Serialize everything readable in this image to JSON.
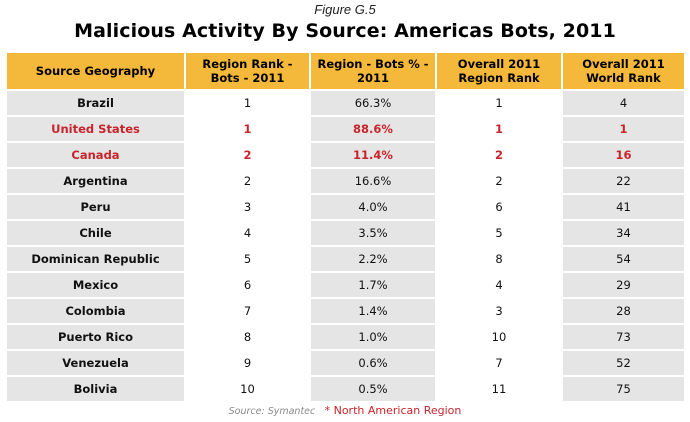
{
  "figure_label": "Figure G.5",
  "title": "Malicious Activity By Source: Americas Bots, 2011",
  "columns": [
    "Source Geography",
    "Region Rank - Bots - 2011",
    "Region - Bots % - 2011",
    "Overall 2011 Region Rank",
    "Overall 2011 World Rank"
  ],
  "rows": [
    {
      "geo": "Brazil",
      "region_rank": "1",
      "bots_pct": "66.3%",
      "overall_region_rank": "1",
      "world_rank": "4",
      "north_american": false
    },
    {
      "geo": "United States",
      "region_rank": "1",
      "bots_pct": "88.6%",
      "overall_region_rank": "1",
      "world_rank": "1",
      "north_american": true
    },
    {
      "geo": "Canada",
      "region_rank": "2",
      "bots_pct": "11.4%",
      "overall_region_rank": "2",
      "world_rank": "16",
      "north_american": true
    },
    {
      "geo": "Argentina",
      "region_rank": "2",
      "bots_pct": "16.6%",
      "overall_region_rank": "2",
      "world_rank": "22",
      "north_american": false
    },
    {
      "geo": "Peru",
      "region_rank": "3",
      "bots_pct": "4.0%",
      "overall_region_rank": "6",
      "world_rank": "41",
      "north_american": false
    },
    {
      "geo": "Chile",
      "region_rank": "4",
      "bots_pct": "3.5%",
      "overall_region_rank": "5",
      "world_rank": "34",
      "north_american": false
    },
    {
      "geo": "Dominican Republic",
      "region_rank": "5",
      "bots_pct": "2.2%",
      "overall_region_rank": "8",
      "world_rank": "54",
      "north_american": false
    },
    {
      "geo": "Mexico",
      "region_rank": "6",
      "bots_pct": "1.7%",
      "overall_region_rank": "4",
      "world_rank": "29",
      "north_american": false
    },
    {
      "geo": "Colombia",
      "region_rank": "7",
      "bots_pct": "1.4%",
      "overall_region_rank": "3",
      "world_rank": "28",
      "north_american": false
    },
    {
      "geo": "Puerto Rico",
      "region_rank": "8",
      "bots_pct": "1.0%",
      "overall_region_rank": "10",
      "world_rank": "73",
      "north_american": false
    },
    {
      "geo": "Venezuela",
      "region_rank": "9",
      "bots_pct": "0.6%",
      "overall_region_rank": "7",
      "world_rank": "52",
      "north_american": false
    },
    {
      "geo": "Bolivia",
      "region_rank": "10",
      "bots_pct": "0.5%",
      "overall_region_rank": "11",
      "world_rank": "75",
      "north_american": false
    }
  ],
  "source": "Source: Symantec",
  "note": "* North American Region",
  "colors": {
    "header_bg": "#f4b83a",
    "shade_bg": "#e5e5e6",
    "highlight_text": "#c8242b"
  }
}
